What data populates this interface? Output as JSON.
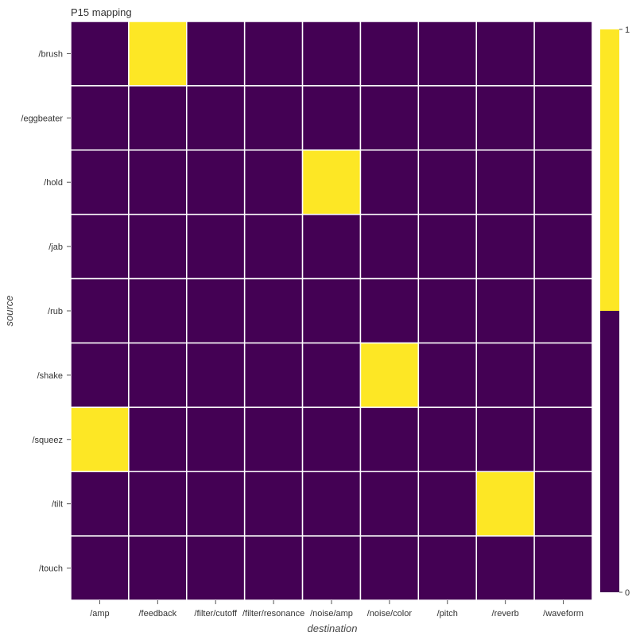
{
  "chart_data": {
    "type": "heatmap",
    "title": "P15 mapping",
    "xlabel": "destination",
    "ylabel": "source",
    "x_categories": [
      "/amp",
      "/feedback",
      "/filter/cutoff",
      "/filter/resonance",
      "/noise/amp",
      "/noise/color",
      "/pitch",
      "/reverb",
      "/waveform"
    ],
    "y_categories": [
      "/brush",
      "/eggbeater",
      "/hold",
      "/jab",
      "/rub",
      "/shake",
      "/squeez",
      "/tilt",
      "/touch"
    ],
    "values": [
      [
        0,
        1,
        0,
        0,
        0,
        0,
        0,
        0,
        0
      ],
      [
        0,
        0,
        0,
        0,
        0,
        0,
        0,
        0,
        0
      ],
      [
        0,
        0,
        0,
        0,
        1,
        0,
        0,
        0,
        0
      ],
      [
        0,
        0,
        0,
        0,
        0,
        0,
        0,
        0,
        0
      ],
      [
        0,
        0,
        0,
        0,
        0,
        0,
        0,
        0,
        0
      ],
      [
        0,
        0,
        0,
        0,
        0,
        1,
        0,
        0,
        0
      ],
      [
        1,
        0,
        0,
        0,
        0,
        0,
        0,
        0,
        0
      ],
      [
        0,
        0,
        0,
        0,
        0,
        0,
        0,
        1,
        0
      ],
      [
        0,
        0,
        0,
        0,
        0,
        0,
        0,
        0,
        0
      ]
    ],
    "colorbar": {
      "ticks": [
        "0",
        "1"
      ],
      "range": [
        0,
        1
      ]
    },
    "colors": {
      "low": "#440154",
      "high": "#fde725",
      "grid": "#ffffff"
    },
    "grid": true
  }
}
